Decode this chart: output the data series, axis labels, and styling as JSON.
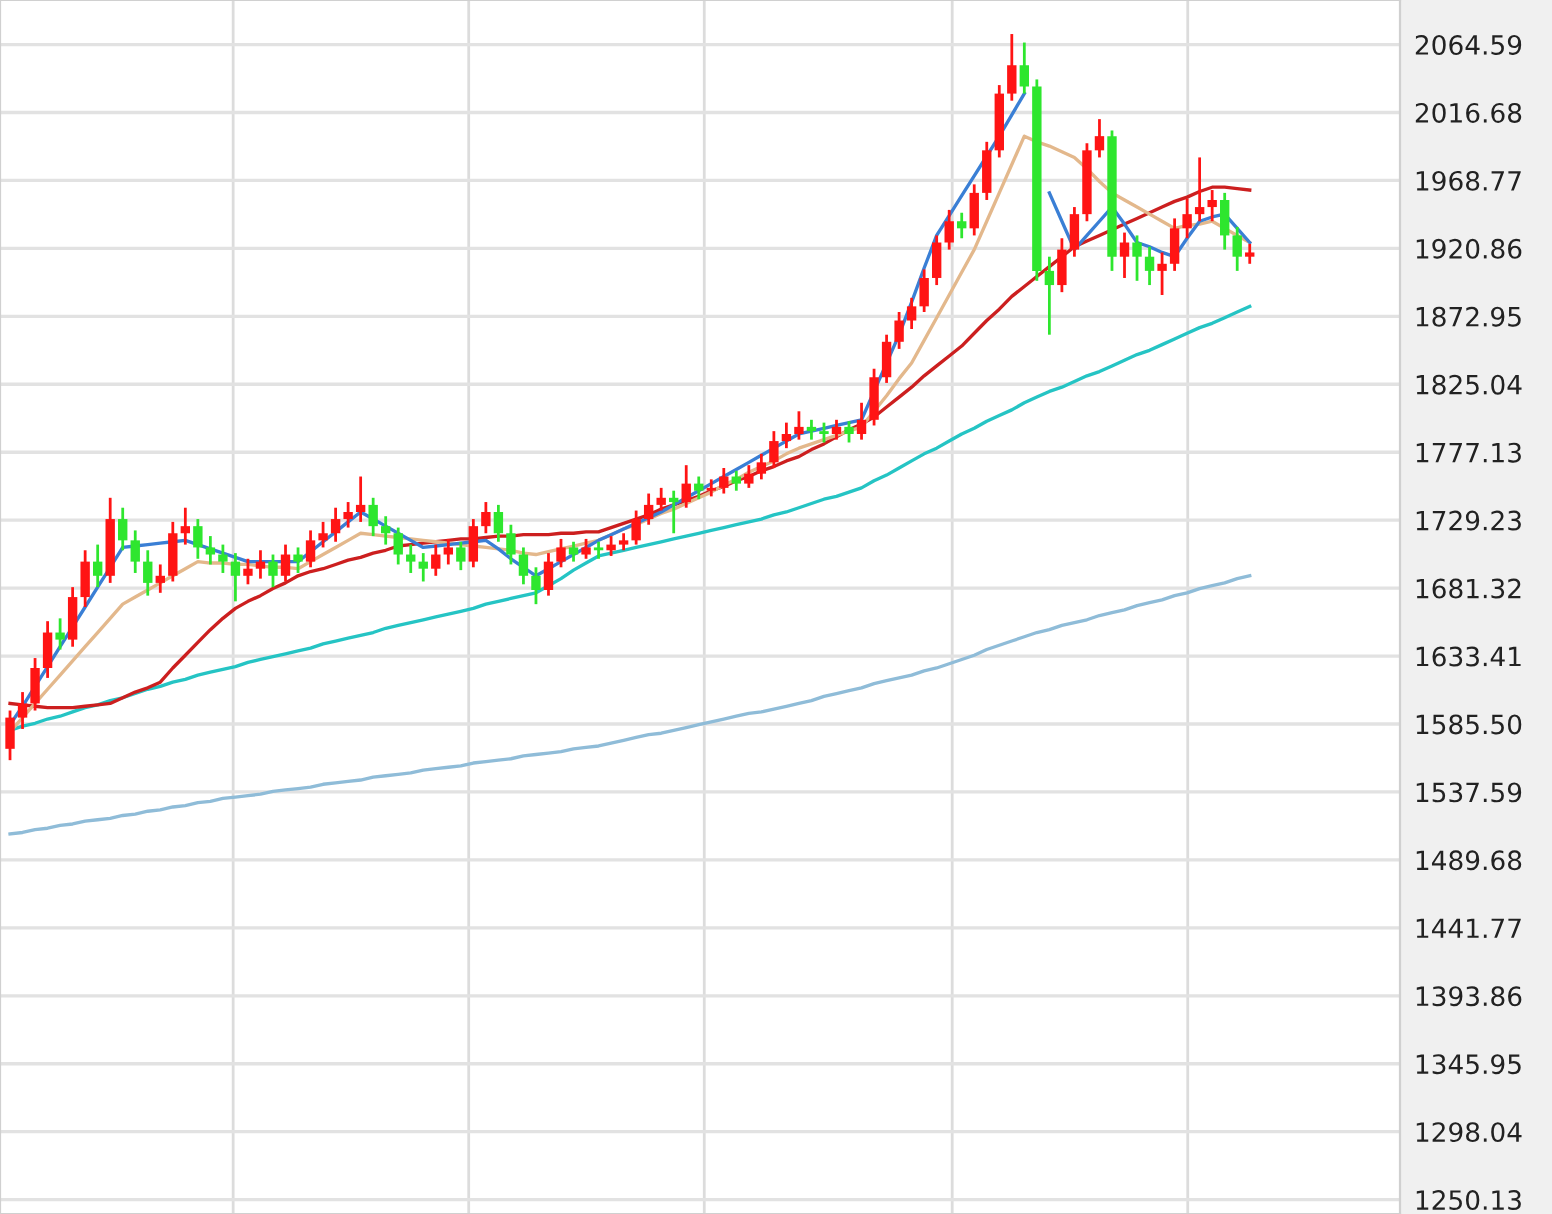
{
  "chart_data": {
    "type": "candlestick",
    "categories": [
      null,
      null,
      null,
      null,
      null,
      null,
      null,
      null,
      null,
      null,
      null,
      null,
      null,
      null,
      null,
      null,
      null,
      null,
      null,
      null,
      null,
      null,
      null,
      null,
      null,
      null,
      null,
      null,
      null,
      null,
      null,
      null,
      null,
      null,
      null,
      null,
      null,
      null,
      null,
      null,
      null,
      null,
      null,
      null,
      null,
      null,
      null,
      null,
      null,
      null,
      null,
      null,
      null,
      null,
      null,
      null,
      null,
      null,
      null,
      null,
      null,
      null,
      null,
      null,
      null,
      null,
      null,
      null,
      null,
      null,
      null,
      null,
      null,
      null,
      null,
      null,
      null,
      null,
      null,
      null,
      null,
      null,
      null,
      null,
      null,
      null,
      null,
      null,
      null,
      null,
      null,
      null,
      null,
      null,
      null,
      null,
      null,
      null,
      null,
      null
    ],
    "ohlc": [
      [
        1568,
        1595,
        1560,
        1590
      ],
      [
        1590,
        1608,
        1582,
        1600
      ],
      [
        1600,
        1632,
        1595,
        1625
      ],
      [
        1625,
        1658,
        1618,
        1650
      ],
      [
        1650,
        1660,
        1638,
        1645
      ],
      [
        1645,
        1682,
        1640,
        1675
      ],
      [
        1675,
        1708,
        1668,
        1700
      ],
      [
        1700,
        1712,
        1682,
        1690
      ],
      [
        1690,
        1745,
        1685,
        1730
      ],
      [
        1730,
        1738,
        1708,
        1715
      ],
      [
        1715,
        1722,
        1692,
        1700
      ],
      [
        1700,
        1708,
        1676,
        1685
      ],
      [
        1685,
        1698,
        1678,
        1690
      ],
      [
        1690,
        1728,
        1686,
        1720
      ],
      [
        1720,
        1738,
        1712,
        1725
      ],
      [
        1725,
        1730,
        1702,
        1710
      ],
      [
        1710,
        1718,
        1698,
        1705
      ],
      [
        1705,
        1712,
        1692,
        1700
      ],
      [
        1700,
        1706,
        1672,
        1690
      ],
      [
        1690,
        1702,
        1684,
        1695
      ],
      [
        1695,
        1708,
        1688,
        1700
      ],
      [
        1700,
        1705,
        1682,
        1690
      ],
      [
        1690,
        1712,
        1686,
        1705
      ],
      [
        1705,
        1710,
        1692,
        1700
      ],
      [
        1700,
        1722,
        1696,
        1715
      ],
      [
        1715,
        1728,
        1710,
        1720
      ],
      [
        1720,
        1738,
        1714,
        1730
      ],
      [
        1730,
        1742,
        1724,
        1735
      ],
      [
        1735,
        1760,
        1728,
        1740
      ],
      [
        1740,
        1745,
        1718,
        1725
      ],
      [
        1725,
        1732,
        1712,
        1720
      ],
      [
        1720,
        1724,
        1698,
        1705
      ],
      [
        1705,
        1712,
        1692,
        1700
      ],
      [
        1700,
        1706,
        1686,
        1695
      ],
      [
        1695,
        1712,
        1690,
        1705
      ],
      [
        1705,
        1716,
        1698,
        1710
      ],
      [
        1710,
        1714,
        1694,
        1700
      ],
      [
        1700,
        1730,
        1696,
        1725
      ],
      [
        1725,
        1742,
        1720,
        1735
      ],
      [
        1735,
        1740,
        1714,
        1720
      ],
      [
        1720,
        1726,
        1698,
        1705
      ],
      [
        1705,
        1710,
        1684,
        1690
      ],
      [
        1690,
        1696,
        1670,
        1680
      ],
      [
        1680,
        1706,
        1676,
        1700
      ],
      [
        1700,
        1716,
        1696,
        1710
      ],
      [
        1710,
        1714,
        1700,
        1705
      ],
      [
        1705,
        1716,
        1702,
        1710
      ],
      [
        1710,
        1714,
        1702,
        1708
      ],
      [
        1708,
        1718,
        1704,
        1712
      ],
      [
        1712,
        1720,
        1708,
        1715
      ],
      [
        1715,
        1736,
        1712,
        1730
      ],
      [
        1730,
        1748,
        1726,
        1740
      ],
      [
        1740,
        1752,
        1736,
        1745
      ],
      [
        1745,
        1750,
        1720,
        1742
      ],
      [
        1742,
        1768,
        1738,
        1755
      ],
      [
        1755,
        1760,
        1744,
        1750
      ],
      [
        1750,
        1758,
        1746,
        1752
      ],
      [
        1752,
        1766,
        1748,
        1760
      ],
      [
        1760,
        1764,
        1750,
        1755
      ],
      [
        1755,
        1768,
        1752,
        1762
      ],
      [
        1762,
        1776,
        1758,
        1770
      ],
      [
        1770,
        1792,
        1766,
        1785
      ],
      [
        1785,
        1798,
        1780,
        1790
      ],
      [
        1790,
        1806,
        1786,
        1795
      ],
      [
        1795,
        1800,
        1786,
        1792
      ],
      [
        1792,
        1798,
        1784,
        1790
      ],
      [
        1790,
        1800,
        1786,
        1795
      ],
      [
        1795,
        1799,
        1784,
        1790
      ],
      [
        1790,
        1812,
        1786,
        1800
      ],
      [
        1800,
        1836,
        1796,
        1830
      ],
      [
        1830,
        1860,
        1826,
        1855
      ],
      [
        1855,
        1876,
        1850,
        1870
      ],
      [
        1870,
        1886,
        1864,
        1880
      ],
      [
        1880,
        1906,
        1876,
        1900
      ],
      [
        1900,
        1930,
        1895,
        1925
      ],
      [
        1925,
        1948,
        1920,
        1940
      ],
      [
        1940,
        1946,
        1928,
        1935
      ],
      [
        1935,
        1966,
        1930,
        1960
      ],
      [
        1960,
        1996,
        1955,
        1990
      ],
      [
        1990,
        2036,
        1985,
        2030
      ],
      [
        2030,
        2072,
        2025,
        2050
      ],
      [
        2050,
        2066,
        2030,
        2035
      ],
      [
        2035,
        2040,
        1898,
        1905
      ],
      [
        1905,
        1915,
        1860,
        1895
      ],
      [
        1895,
        1928,
        1890,
        1920
      ],
      [
        1920,
        1950,
        1915,
        1945
      ],
      [
        1945,
        1995,
        1940,
        1990
      ],
      [
        1990,
        2012,
        1985,
        2000
      ],
      [
        2000,
        2004,
        1905,
        1915
      ],
      [
        1915,
        1932,
        1900,
        1925
      ],
      [
        1925,
        1930,
        1898,
        1915
      ],
      [
        1915,
        1922,
        1895,
        1905
      ],
      [
        1905,
        1918,
        1888,
        1910
      ],
      [
        1910,
        1942,
        1905,
        1935
      ],
      [
        1935,
        1956,
        1928,
        1945
      ],
      [
        1945,
        1985,
        1940,
        1950
      ],
      [
        1950,
        1962,
        1940,
        1955
      ],
      [
        1955,
        1960,
        1920,
        1930
      ],
      [
        1930,
        1936,
        1905,
        1915
      ],
      [
        1915,
        1924,
        1910,
        1918
      ]
    ],
    "series": [
      {
        "type": "line",
        "color": "#8fbcd8",
        "values": [
          1508,
          1509,
          1511,
          1512,
          1514,
          1515,
          1517,
          1518,
          1519,
          1521,
          1522,
          1524,
          1525,
          1527,
          1528,
          1530,
          1531,
          1533,
          1534,
          1535,
          1536,
          1538,
          1539,
          1540,
          1541,
          1543,
          1544,
          1545,
          1546,
          1548,
          1549,
          1550,
          1551,
          1553,
          1554,
          1555,
          1556,
          1558,
          1559,
          1560,
          1561,
          1563,
          1564,
          1565,
          1566,
          1568,
          1569,
          1570,
          1572,
          1574,
          1576,
          1578,
          1579,
          1581,
          1583,
          1585,
          1587,
          1589,
          1591,
          1593,
          1594,
          1596,
          1598,
          1600,
          1602,
          1605,
          1607,
          1609,
          1611,
          1614,
          1616,
          1618,
          1620,
          1623,
          1625,
          1628,
          1631,
          1634,
          1638,
          1641,
          1644,
          1647,
          1650,
          1652,
          1655,
          1657,
          1659,
          1662,
          1664,
          1666,
          1669,
          1671,
          1673,
          1676,
          1678,
          1681,
          1683,
          1685,
          1688,
          1690
        ]
      },
      {
        "type": "line",
        "color": "#25c4c4",
        "values": [
          1581,
          1584,
          1586,
          1589,
          1591,
          1594,
          1597,
          1599,
          1602,
          1604,
          1607,
          1610,
          1612,
          1615,
          1617,
          1620,
          1622,
          1624,
          1626,
          1629,
          1631,
          1633,
          1635,
          1637,
          1639,
          1642,
          1644,
          1646,
          1648,
          1650,
          1653,
          1655,
          1657,
          1659,
          1661,
          1663,
          1665,
          1667,
          1670,
          1672,
          1674,
          1676,
          1678,
          1683,
          1688,
          1694,
          1699,
          1704,
          1706,
          1708,
          1710,
          1712,
          1714,
          1716,
          1718,
          1720,
          1722,
          1724,
          1726,
          1728,
          1730,
          1733,
          1735,
          1738,
          1741,
          1744,
          1746,
          1749,
          1752,
          1757,
          1761,
          1766,
          1771,
          1776,
          1780,
          1785,
          1790,
          1794,
          1799,
          1803,
          1807,
          1812,
          1816,
          1820,
          1823,
          1827,
          1831,
          1834,
          1838,
          1842,
          1846,
          1849,
          1853,
          1857,
          1861,
          1865,
          1868,
          1872,
          1876,
          1880
        ]
      },
      {
        "type": "line",
        "color": "#cc1f1f",
        "values": [
          1600,
          1599,
          1598,
          1597,
          1597,
          1597,
          1598,
          1599,
          1600,
          1604,
          1608,
          1611,
          1615,
          1625,
          1634,
          1643,
          1652,
          1660,
          1667,
          1672,
          1676,
          1681,
          1685,
          1690,
          1693,
          1695,
          1698,
          1701,
          1703,
          1706,
          1708,
          1711,
          1712,
          1713,
          1714,
          1715,
          1716,
          1716,
          1717,
          1718,
          1718,
          1719,
          1719,
          1719,
          1720,
          1720,
          1721,
          1721,
          1724,
          1727,
          1730,
          1733,
          1737,
          1740,
          1743,
          1746,
          1750,
          1753,
          1757,
          1760,
          1764,
          1767,
          1771,
          1774,
          1779,
          1783,
          1788,
          1793,
          1797,
          1802,
          1809,
          1816,
          1823,
          1831,
          1838,
          1845,
          1852,
          1861,
          1870,
          1878,
          1887,
          1894,
          1901,
          1908,
          1915,
          1922,
          1926,
          1930,
          1934,
          1938,
          1942,
          1946,
          1950,
          1954,
          1957,
          1961,
          1964,
          1964,
          1963,
          1962
        ]
      },
      {
        "type": "line",
        "color": "#e3b88c",
        "values": [
          1580,
          1590,
          1600,
          1610,
          1620,
          1630,
          1640,
          1650,
          1660,
          1670,
          1675,
          1680,
          1685,
          1690,
          1695,
          1700,
          1699,
          1699,
          1698,
          1698,
          1697,
          1696,
          1696,
          1695,
          1700,
          1705,
          1710,
          1715,
          1720,
          1719,
          1718,
          1717,
          1716,
          1715,
          1714,
          1713,
          1712,
          1711,
          1710,
          1709,
          1708,
          1706,
          1705,
          1707,
          1709,
          1711,
          1713,
          1715,
          1719,
          1723,
          1726,
          1730,
          1734,
          1737,
          1741,
          1745,
          1749,
          1754,
          1758,
          1763,
          1767,
          1771,
          1776,
          1780,
          1783,
          1786,
          1789,
          1792,
          1795,
          1806,
          1817,
          1829,
          1840,
          1856,
          1872,
          1888,
          1904,
          1920,
          1940,
          1960,
          1980,
          2000,
          1996,
          1993,
          1989,
          1985,
          1977,
          1968,
          1960,
          1955,
          1950,
          1945,
          1940,
          1935,
          1937,
          1938,
          1940,
          1935,
          1930,
          1925
        ]
      },
      {
        "type": "line",
        "color": "#3a7fd5",
        "values": [
          1585,
          1598,
          1612,
          1626,
          1640,
          1654,
          1668,
          1682,
          1696,
          1710,
          1711,
          1712,
          1713,
          1714,
          1715,
          1712,
          1709,
          1706,
          1703,
          1700,
          1700,
          1700,
          1700,
          1700,
          1707,
          1714,
          1721,
          1728,
          1735,
          1730,
          1725,
          1720,
          1715,
          1710,
          1711,
          1712,
          1713,
          1714,
          1715,
          1709,
          1702,
          1696,
          1690,
          1695,
          1700,
          1705,
          1710,
          1715,
          1719,
          1723,
          1727,
          1731,
          1735,
          1740,
          1745,
          1750,
          1755,
          1760,
          1765,
          1770,
          1775,
          1780,
          1785,
          1790,
          1792,
          1794,
          1796,
          1798,
          1800,
          1820,
          1840,
          1860,
          1883,
          1907,
          1930,
          1944,
          1958,
          1972,
          1986,
          2000,
          2015,
          2030,
          null,
          1960,
          1940,
          1920,
          1930,
          1940,
          1950,
          1938,
          1925,
          1922,
          1918,
          1915,
          1928,
          1940,
          1943,
          1945,
          1935,
          1925
        ]
      }
    ],
    "ylim": [
      1240,
      2096
    ],
    "yticks": [
      1250.13,
      1298.04,
      1345.95,
      1393.86,
      1441.77,
      1489.68,
      1537.59,
      {
        "value": 1585.5,
        "label": "1585.50"
      },
      1633.41,
      1681.32,
      1729.23,
      1777.13,
      1825.04,
      1872.95,
      1920.86,
      1968.77,
      2016.68,
      2064.59
    ],
    "grid": "y",
    "tick_labels": "y"
  }
}
